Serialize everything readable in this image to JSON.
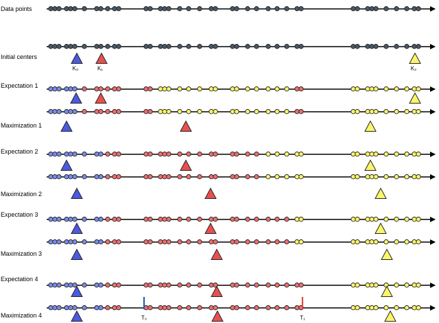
{
  "title": "",
  "palette": {
    "gray": "#4a5866",
    "blue": "#7b8ce8",
    "red": "#ef6f6f",
    "yellow": "#fbf56a",
    "blue_tri": "#4b5ae0",
    "red_tri": "#e85050",
    "yellow_tri": "#fbf56a",
    "t0_line": "#1f5fb5",
    "t1_line": "#e04a3c"
  },
  "point_x": [
    74,
    80,
    86,
    97,
    103,
    109,
    123,
    141,
    147,
    157,
    167,
    173,
    213,
    219,
    234,
    240,
    246,
    262,
    275,
    291,
    308,
    314,
    339,
    345,
    361,
    374,
    391,
    404,
    418,
    433,
    439,
    515,
    521,
    536,
    542,
    548,
    563,
    578,
    593,
    604,
    610
  ],
  "labels": {
    "gray": "gray",
    "blue": "blue",
    "red": "red",
    "yellow": "yellow"
  },
  "rows": [
    {
      "label": "Data points",
      "dots": "G41",
      "triangles": []
    },
    {
      "label": "",
      "dots": "G41",
      "triangles": []
    },
    {
      "label": "Initial centers",
      "dots": "",
      "triangles": [
        {
          "x": 112,
          "color": "blue",
          "text": "K₀"
        },
        {
          "x": 148,
          "color": "red",
          "text": "K₁"
        },
        {
          "x": 605,
          "color": "yellow",
          "text": "K₂"
        }
      ]
    },
    {
      "label": "Expectation 1",
      "dots": "B6 R8 Y15 R2 Y10",
      "triangles": []
    },
    {
      "label": "",
      "dots": "B6 R8 Y15 R2 Y10",
      "triangles": [
        {
          "x": 111,
          "color": "blue"
        },
        {
          "x": 147,
          "color": "red"
        },
        {
          "x": 605,
          "color": "yellow"
        }
      ]
    },
    {
      "label": "Maximization 1",
      "dots": "",
      "triangles": [
        {
          "x": 97,
          "color": "blue"
        },
        {
          "x": 271,
          "color": "red"
        },
        {
          "x": 540,
          "color": "yellow"
        }
      ]
    },
    {
      "label": "Expectation 2",
      "dots": "B9 R17 Y15",
      "triangles": []
    },
    {
      "label": "",
      "dots": "B9 R17 Y15",
      "triangles": [
        {
          "x": 97,
          "color": "blue"
        },
        {
          "x": 271,
          "color": "red"
        },
        {
          "x": 540,
          "color": "yellow"
        }
      ]
    },
    {
      "label": "Maximization 2",
      "dots": "",
      "triangles": [
        {
          "x": 112,
          "color": "blue"
        },
        {
          "x": 307,
          "color": "red"
        },
        {
          "x": 555,
          "color": "yellow"
        }
      ]
    },
    {
      "label": "Expectation 3",
      "dots": "B9 R20 Y12",
      "triangles": []
    },
    {
      "label": "",
      "dots": "B9 R20 Y12",
      "triangles": [
        {
          "x": 112,
          "color": "blue"
        },
        {
          "x": 307,
          "color": "red"
        },
        {
          "x": 555,
          "color": "yellow"
        }
      ]
    },
    {
      "label": "Maximization 3",
      "dots": "",
      "triangles": [
        {
          "x": 112,
          "color": "blue"
        },
        {
          "x": 316,
          "color": "red"
        },
        {
          "x": 564,
          "color": "yellow"
        }
      ]
    },
    {
      "label": "Expectation 4",
      "dots": "B9 R22 Y10",
      "triangles": []
    },
    {
      "label": "",
      "dots": "B9 R22 Y10",
      "triangles": [
        {
          "x": 112,
          "color": "blue"
        },
        {
          "x": 316,
          "color": "red"
        },
        {
          "x": 564,
          "color": "yellow"
        }
      ]
    },
    {
      "label": "Maximization 4",
      "dots": "",
      "triangles": [
        {
          "x": 112,
          "color": "blue"
        },
        {
          "x": 317,
          "color": "red"
        },
        {
          "x": 569,
          "color": "yellow"
        }
      ]
    }
  ],
  "thresholds": [
    {
      "x": 210,
      "color": "t0_line",
      "text": "T₀"
    },
    {
      "x": 441,
      "color": "t1_line",
      "text": "T₁"
    }
  ]
}
